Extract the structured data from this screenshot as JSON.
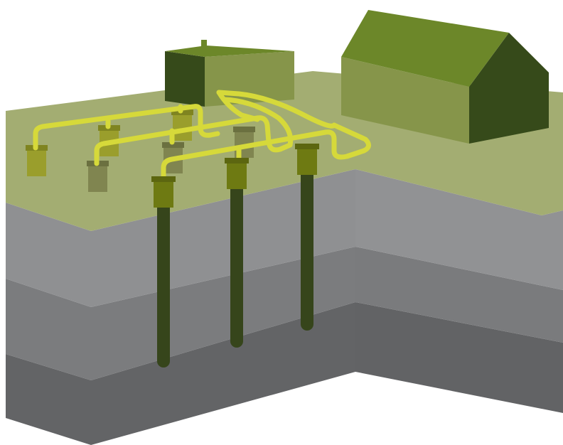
{
  "diagram": {
    "colors": {
      "ground_top": "#A3AD72",
      "layer1_front": "#8F9092",
      "layer1_right": "#919294",
      "layer2_front": "#7B7C7E",
      "layer2_right": "#7A7B7D",
      "layer3_front": "#636466",
      "layer3_right": "#626365",
      "pipe_yellow": "#D6D93A",
      "pipe_yellow_dark": "#B6B82A",
      "well_shaft": "#36451B",
      "well_cap": "#6E7A12",
      "manhole": "#9A9E2C",
      "manhole_dim": "#808550",
      "building_dark": "#364A1A",
      "building_mid": "#86954A",
      "roof": "#6C8729"
    },
    "elements": {
      "small_building": "utility shed",
      "house": "house",
      "wells": [
        "well-1",
        "well-2",
        "well-3"
      ],
      "manholes": [
        "vault-1",
        "vault-2",
        "vault-3",
        "vault-4",
        "vault-5",
        "vault-6"
      ]
    }
  }
}
